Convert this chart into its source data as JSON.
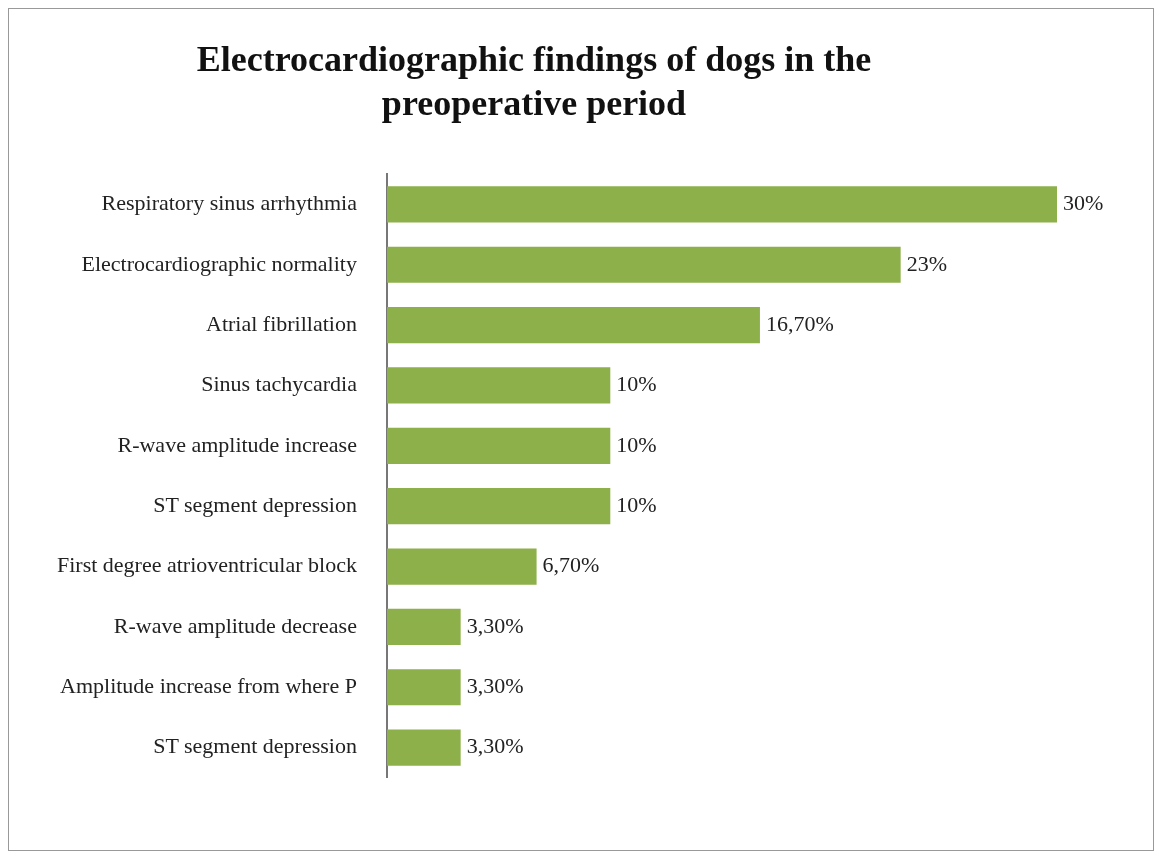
{
  "chart_data": {
    "type": "bar",
    "orientation": "horizontal",
    "title": "Electrocardiographic findings of dogs in the preoperative period",
    "categories": [
      "Respiratory sinus arrhythmia",
      "Electrocardiographic normality",
      "Atrial fibrillation",
      "Sinus tachycardia",
      "R-wave amplitude increase",
      "ST segment depression",
      "First degree atrioventricular block",
      "R-wave amplitude decrease",
      "Amplitude increase from where P",
      "ST segment depression"
    ],
    "values": [
      30,
      23,
      16.7,
      10,
      10,
      10,
      6.7,
      3.3,
      3.3,
      3.3
    ],
    "value_labels": [
      "30%",
      "23%",
      "16,70%",
      "10%",
      "10%",
      "10%",
      "6,70%",
      "3,30%",
      "3,30%",
      "3,30%"
    ],
    "color": "#8db04a",
    "grid": false,
    "legend": false
  }
}
